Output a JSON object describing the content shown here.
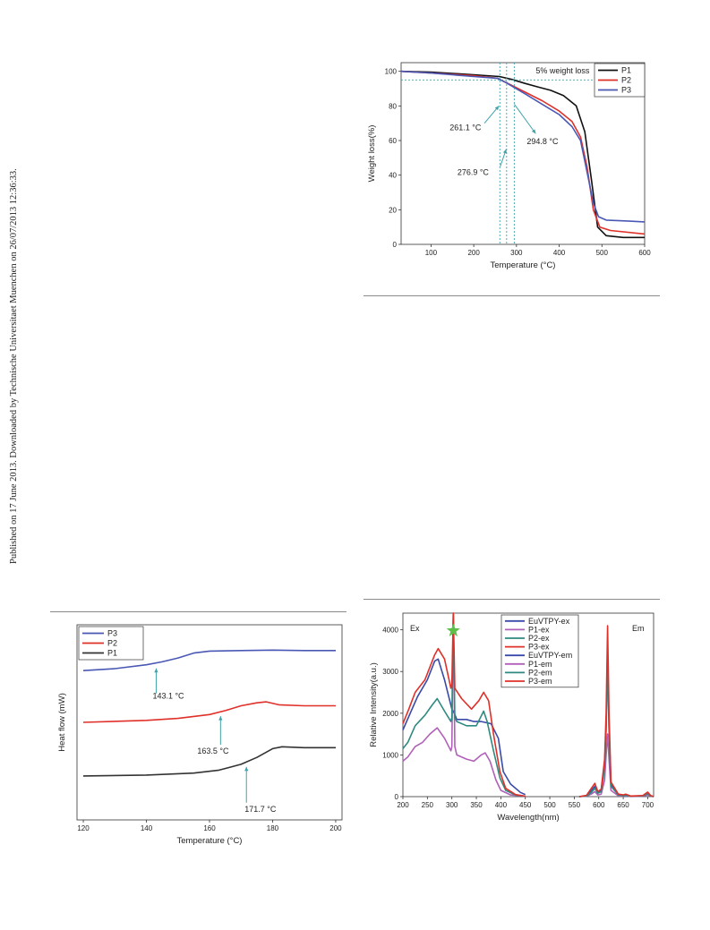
{
  "sidebar_text": "Published on 17 June 2013. Downloaded by Technische Universitaet Muenchen on 26/07/2013 12:36:33.",
  "chart_data": [
    {
      "id": "tga",
      "type": "line",
      "xlabel": "Temperature (°C)",
      "ylabel": "Weight loss(%)",
      "xlim": [
        30,
        600
      ],
      "ylim": [
        0,
        105
      ],
      "xticks": [
        100,
        200,
        300,
        400,
        500,
        600
      ],
      "yticks": [
        0,
        20,
        40,
        60,
        80,
        100
      ],
      "legend_position": "top-right",
      "grid": false,
      "series": [
        {
          "name": "P1",
          "color": "#111111",
          "points": [
            [
              30,
              100
            ],
            [
              100,
              99.5
            ],
            [
              200,
              98
            ],
            [
              260,
              97
            ],
            [
              290,
              95.3
            ],
            [
              320,
              93
            ],
            [
              350,
              91
            ],
            [
              380,
              89
            ],
            [
              410,
              86
            ],
            [
              440,
              80
            ],
            [
              460,
              65
            ],
            [
              475,
              38
            ],
            [
              490,
              10
            ],
            [
              510,
              5
            ],
            [
              550,
              4
            ],
            [
              600,
              4
            ]
          ]
        },
        {
          "name": "P2",
          "color": "#e0302a",
          "points": [
            [
              30,
              100
            ],
            [
              100,
              99
            ],
            [
              200,
              97.5
            ],
            [
              255,
              96
            ],
            [
              280,
              93
            ],
            [
              320,
              88
            ],
            [
              360,
              83
            ],
            [
              400,
              77
            ],
            [
              430,
              71
            ],
            [
              450,
              62
            ],
            [
              465,
              45
            ],
            [
              480,
              20
            ],
            [
              495,
              10
            ],
            [
              520,
              8
            ],
            [
              600,
              6
            ]
          ]
        },
        {
          "name": "P3",
          "color": "#4a58b5",
          "points": [
            [
              30,
              100
            ],
            [
              100,
              99
            ],
            [
              200,
              97
            ],
            [
              255,
              96
            ],
            [
              275,
              93.5
            ],
            [
              320,
              87
            ],
            [
              360,
              81
            ],
            [
              400,
              75
            ],
            [
              430,
              68
            ],
            [
              450,
              60
            ],
            [
              465,
              42
            ],
            [
              480,
              24
            ],
            [
              492,
              16
            ],
            [
              510,
              14
            ],
            [
              560,
              13.5
            ],
            [
              600,
              13
            ]
          ]
        }
      ],
      "annotations": {
        "threshold_label": "5% weight loss",
        "threshold_value": 95,
        "temps": [
          {
            "label": "261.1 °C",
            "x": 261.1
          },
          {
            "label": "276.9 °C",
            "x": 276.9
          },
          {
            "label": "294.8 °C",
            "x": 294.8
          }
        ]
      }
    },
    {
      "id": "dsc",
      "type": "line",
      "xlabel": "Temperature (°C)",
      "ylabel": "Heat flow (mW)",
      "xlim": [
        118,
        202
      ],
      "ylim": [
        0,
        100
      ],
      "xticks": [
        120,
        140,
        160,
        180,
        200
      ],
      "yticks": [],
      "legend_position": "top-left",
      "grid": false,
      "series": [
        {
          "name": "P3",
          "color": "#4a58b5",
          "points": [
            [
              120,
              76.5
            ],
            [
              130,
              77.5
            ],
            [
              140,
              79.5
            ],
            [
              145,
              81
            ],
            [
              150,
              83
            ],
            [
              155,
              85.5
            ],
            [
              160,
              86.5
            ],
            [
              170,
              86.8
            ],
            [
              180,
              87
            ],
            [
              190,
              86.8
            ],
            [
              200,
              86.8
            ]
          ]
        },
        {
          "name": "P2",
          "color": "#e0302a",
          "points": [
            [
              120,
              50
            ],
            [
              140,
              51
            ],
            [
              150,
              52
            ],
            [
              160,
              54
            ],
            [
              165,
              56
            ],
            [
              170,
              58.5
            ],
            [
              175,
              60
            ],
            [
              178,
              60.5
            ],
            [
              182,
              59
            ],
            [
              190,
              58.5
            ],
            [
              200,
              58.5
            ]
          ]
        },
        {
          "name": "P1",
          "color": "#333333",
          "points": [
            [
              120,
              22.5
            ],
            [
              140,
              23
            ],
            [
              155,
              24
            ],
            [
              163,
              25.5
            ],
            [
              170,
              28.5
            ],
            [
              175,
              32
            ],
            [
              180,
              36.5
            ],
            [
              183,
              37.5
            ],
            [
              190,
              37
            ],
            [
              200,
              37
            ]
          ]
        }
      ],
      "annotations": {
        "temps": [
          {
            "label": "143.1 °C",
            "x": 143.1,
            "y": 79.5
          },
          {
            "label": "163.5 °C",
            "x": 163.5,
            "y": 55
          },
          {
            "label": "171.7 °C",
            "x": 171.7,
            "y": 29
          }
        ]
      }
    },
    {
      "id": "pl",
      "type": "line",
      "xlabel": "Wavelength(nm)",
      "ylabel": "Relative Intensity(a.u.)",
      "xlim": [
        200,
        712
      ],
      "ylim": [
        0,
        4400
      ],
      "xticks": [
        200,
        250,
        300,
        350,
        400,
        450,
        500,
        550,
        600,
        650,
        700
      ],
      "yticks": [
        0,
        1000,
        2000,
        3000,
        4000
      ],
      "legend_position": "top-center",
      "grid": false,
      "region_labels": [
        "Ex",
        "Em"
      ],
      "series": [
        {
          "name": "EuVTPY-ex",
          "color": "#3a4aa8",
          "points": [
            [
              200,
              1600
            ],
            [
              215,
              2000
            ],
            [
              230,
              2400
            ],
            [
              250,
              2800
            ],
            [
              265,
              3250
            ],
            [
              272,
              3300
            ],
            [
              285,
              2800
            ],
            [
              300,
              2100
            ],
            [
              305,
              2000
            ],
            [
              310,
              1850
            ],
            [
              330,
              1850
            ],
            [
              345,
              1800
            ],
            [
              360,
              1800
            ],
            [
              380,
              1750
            ],
            [
              395,
              1400
            ],
            [
              405,
              600
            ],
            [
              420,
              300
            ],
            [
              440,
              100
            ],
            [
              450,
              50
            ]
          ]
        },
        {
          "name": "P1-ex",
          "color": "#b060b8",
          "points": [
            [
              200,
              850
            ],
            [
              210,
              950
            ],
            [
              225,
              1200
            ],
            [
              240,
              1300
            ],
            [
              255,
              1500
            ],
            [
              270,
              1650
            ],
            [
              285,
              1400
            ],
            [
              298,
              1100
            ],
            [
              300,
              1200
            ],
            [
              303,
              4400
            ],
            [
              306,
              1200
            ],
            [
              310,
              1000
            ],
            [
              330,
              900
            ],
            [
              345,
              850
            ],
            [
              360,
              1000
            ],
            [
              368,
              1050
            ],
            [
              378,
              850
            ],
            [
              390,
              400
            ],
            [
              400,
              150
            ],
            [
              420,
              40
            ],
            [
              450,
              10
            ]
          ]
        },
        {
          "name": "P2-ex",
          "color": "#2e8a80",
          "points": [
            [
              200,
              1150
            ],
            [
              210,
              1300
            ],
            [
              225,
              1700
            ],
            [
              245,
              1950
            ],
            [
              260,
              2200
            ],
            [
              270,
              2350
            ],
            [
              285,
              2050
            ],
            [
              298,
              1800
            ],
            [
              300,
              1900
            ],
            [
              303,
              4400
            ],
            [
              306,
              1900
            ],
            [
              310,
              1800
            ],
            [
              330,
              1700
            ],
            [
              350,
              1700
            ],
            [
              365,
              2050
            ],
            [
              372,
              1800
            ],
            [
              385,
              1100
            ],
            [
              398,
              450
            ],
            [
              410,
              150
            ],
            [
              430,
              40
            ],
            [
              450,
              10
            ]
          ]
        },
        {
          "name": "P3-ex",
          "color": "#e0302a",
          "points": [
            [
              200,
              1750
            ],
            [
              212,
              2100
            ],
            [
              225,
              2500
            ],
            [
              245,
              2800
            ],
            [
              265,
              3400
            ],
            [
              272,
              3550
            ],
            [
              285,
              3300
            ],
            [
              298,
              2600
            ],
            [
              300,
              2700
            ],
            [
              303,
              4400
            ],
            [
              306,
              2600
            ],
            [
              320,
              2350
            ],
            [
              340,
              2100
            ],
            [
              355,
              2300
            ],
            [
              365,
              2500
            ],
            [
              375,
              2300
            ],
            [
              385,
              1500
            ],
            [
              398,
              600
            ],
            [
              410,
              200
            ],
            [
              430,
              50
            ],
            [
              450,
              10
            ]
          ]
        },
        {
          "name": "EuVTPY-em",
          "color": "#3a4aa8",
          "points": [
            [
              560,
              0
            ],
            [
              575,
              20
            ],
            [
              585,
              150
            ],
            [
              592,
              250
            ],
            [
              598,
              100
            ],
            [
              605,
              150
            ],
            [
              612,
              800
            ],
            [
              615,
              1700
            ],
            [
              618,
              3300
            ],
            [
              621,
              1700
            ],
            [
              625,
              300
            ],
            [
              640,
              50
            ],
            [
              650,
              30
            ],
            [
              655,
              40
            ],
            [
              665,
              10
            ],
            [
              690,
              20
            ],
            [
              700,
              80
            ],
            [
              706,
              20
            ],
            [
              712,
              0
            ]
          ]
        },
        {
          "name": "P1-em",
          "color": "#b060b8",
          "points": [
            [
              560,
              0
            ],
            [
              575,
              10
            ],
            [
              585,
              60
            ],
            [
              592,
              120
            ],
            [
              598,
              40
            ],
            [
              605,
              60
            ],
            [
              612,
              400
            ],
            [
              615,
              1000
            ],
            [
              618,
              1500
            ],
            [
              621,
              900
            ],
            [
              625,
              150
            ],
            [
              640,
              20
            ],
            [
              650,
              10
            ],
            [
              655,
              20
            ],
            [
              665,
              5
            ],
            [
              690,
              10
            ],
            [
              700,
              40
            ],
            [
              706,
              10
            ],
            [
              712,
              0
            ]
          ]
        },
        {
          "name": "P2-em",
          "color": "#2e8a80",
          "points": [
            [
              560,
              0
            ],
            [
              575,
              15
            ],
            [
              585,
              100
            ],
            [
              592,
              200
            ],
            [
              598,
              80
            ],
            [
              605,
              120
            ],
            [
              612,
              700
            ],
            [
              615,
              1600
            ],
            [
              618,
              3400
            ],
            [
              621,
              1600
            ],
            [
              625,
              250
            ],
            [
              640,
              40
            ],
            [
              650,
              20
            ],
            [
              655,
              30
            ],
            [
              665,
              10
            ],
            [
              690,
              15
            ],
            [
              700,
              70
            ],
            [
              706,
              15
            ],
            [
              712,
              0
            ]
          ]
        },
        {
          "name": "P3-em",
          "color": "#e0302a",
          "points": [
            [
              560,
              0
            ],
            [
              575,
              30
            ],
            [
              585,
              200
            ],
            [
              592,
              320
            ],
            [
              598,
              120
            ],
            [
              605,
              180
            ],
            [
              612,
              900
            ],
            [
              615,
              2000
            ],
            [
              618,
              4100
            ],
            [
              621,
              2000
            ],
            [
              625,
              350
            ],
            [
              640,
              60
            ],
            [
              650,
              40
            ],
            [
              655,
              60
            ],
            [
              665,
              15
            ],
            [
              690,
              25
            ],
            [
              700,
              110
            ],
            [
              706,
              25
            ],
            [
              712,
              0
            ]
          ]
        }
      ],
      "marker": {
        "shape": "star",
        "color": "#5ec04a",
        "x": 303,
        "y": 3980
      }
    }
  ]
}
